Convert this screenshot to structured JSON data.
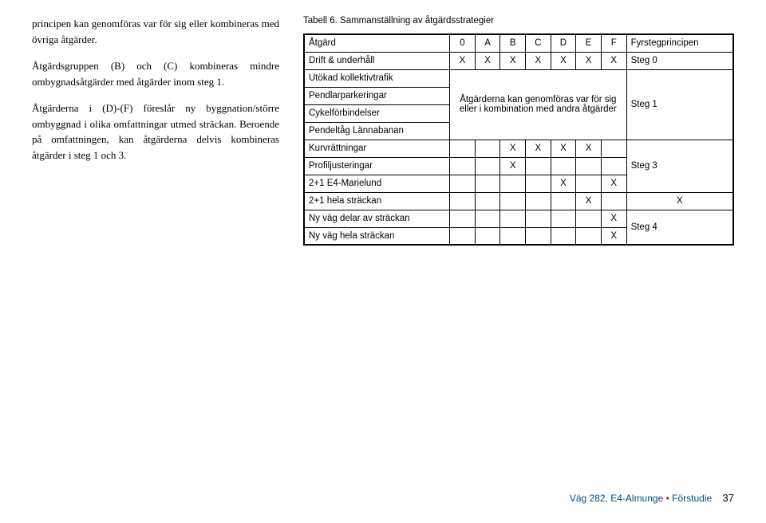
{
  "left": {
    "para1": "principen kan genomföras var för sig eller kombineras med övriga åtgärder.",
    "para2": "Åtgärdsgruppen (B) och (C) kombineras mindre ombygnadsåtgärder med åtgärder inom steg 1.",
    "para3": "Åtgärderna i (D)-(F) föreslår ny byggnation/större ombyggnad i olika omfattningar utmed sträckan. Beroende på omfattningen, kan åtgärderna delvis kombineras åtgärder i steg 1 och 3."
  },
  "table": {
    "caption": "Tabell 6. Sammanställning av åtgärdsstrategier",
    "header": {
      "c0": "Åtgärd",
      "c1": "0",
      "c2": "A",
      "c3": "B",
      "c4": "C",
      "c5": "D",
      "c6": "E",
      "c7": "F",
      "c8": "Fyrstegprincipen"
    },
    "rows": {
      "r1": {
        "label": "Drift & underhåll",
        "v1": "X",
        "v2": "X",
        "v3": "X",
        "v4": "X",
        "v5": "X",
        "v6": "X",
        "v7": "X",
        "step": "Steg 0"
      },
      "r2": {
        "label": "Utökad kollektivtrafik"
      },
      "r3": {
        "label": "Pendlarparkeringar"
      },
      "r4": {
        "label": "Cykelförbindelser"
      },
      "r5": {
        "label": "Pendeltåg Lännabanan"
      },
      "mergedNote": "Åtgärderna kan genomföras var för sig eller i kombination med andra åtgärder",
      "step1": "Steg 1",
      "r6": {
        "label": "Kurvrättningar",
        "v3": "X",
        "v4": "X",
        "v5": "X",
        "v6": "X"
      },
      "r7": {
        "label": "Profiljusteringar",
        "v3": "X",
        "step": "Steg 3"
      },
      "r8": {
        "label": "2+1 E4-Marielund",
        "v5": "X",
        "v7": "X"
      },
      "r9": {
        "label": "2+1 hela sträckan",
        "v6": "X",
        "v8_blank": "",
        "v7after": "X"
      },
      "r10": {
        "label": "Ny väg delar av sträckan",
        "v7": "X",
        "step": "Steg 4"
      },
      "r11": {
        "label": "Ny väg hela sträckan",
        "v8": "X"
      }
    }
  },
  "footer": {
    "text1": "Väg 282, E4-Almunge",
    "bullet": "•",
    "text2": "Förstudie",
    "page": "37"
  }
}
